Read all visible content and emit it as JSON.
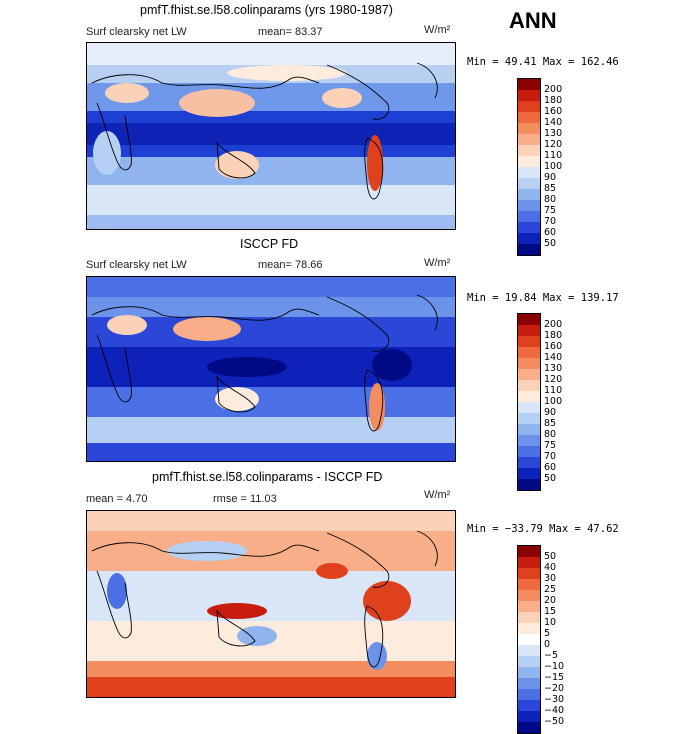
{
  "season": "ANN",
  "panels": [
    {
      "title": "pmfT.fhist.se.l58.colinparams (yrs 1980-1987)",
      "field_label": "Surf clearsky net LW",
      "mean_text": "mean=  83.37",
      "units_text": "W/m²",
      "minmax_text": "Min =  49.41 Max = 162.46"
    },
    {
      "title": "ISCCP FD",
      "field_label": "Surf clearsky net LW",
      "mean_text": "mean=  78.66",
      "units_text": "W/m²",
      "minmax_text": "Min =  19.84 Max = 139.17"
    },
    {
      "title": "pmfT.fhist.se.l58.colinparams - ISCCP FD",
      "mean_text": "mean =   4.70",
      "rmse_text": "rmse =  11.03",
      "units_text": "W/m²",
      "minmax_text": "Min = −33.79 Max =  47.62"
    }
  ],
  "colorbar_abs": {
    "levels": [
      "200",
      "180",
      "160",
      "140",
      "130",
      "120",
      "110",
      "100",
      "90",
      "85",
      "80",
      "75",
      "70",
      "60",
      "50"
    ],
    "colors": [
      "#8b0000",
      "#c81d0e",
      "#e0411d",
      "#ee6a3c",
      "#f38c5f",
      "#f8ae89",
      "#fbd1b8",
      "#fdebdd",
      "#d9e6f7",
      "#b5d0f2",
      "#8fb4ee",
      "#6c93ea",
      "#4b6fe5",
      "#2a47d8",
      "#0d22b8",
      "#000a85"
    ]
  },
  "colorbar_diff": {
    "levels": [
      "50",
      "40",
      "30",
      "25",
      "20",
      "15",
      "10",
      "5",
      "0",
      "−5",
      "−10",
      "−15",
      "−20",
      "−30",
      "−40",
      "−50"
    ],
    "colors": [
      "#8b0000",
      "#c81d0e",
      "#e0411d",
      "#ee6a3c",
      "#f38c5f",
      "#f8ae89",
      "#fbd1b8",
      "#fdebdd",
      "#ffffff",
      "#d9e6f7",
      "#b5d0f2",
      "#8fb4ee",
      "#6c93ea",
      "#4b6fe5",
      "#2a47d8",
      "#0d22b8",
      "#000a85"
    ]
  }
}
